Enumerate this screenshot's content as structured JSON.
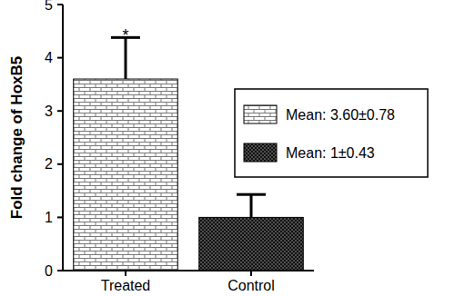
{
  "chart_data": {
    "type": "bar",
    "y_label": "Fold change of HoxB5",
    "categories": [
      "Treated",
      "Control"
    ],
    "series": [
      {
        "name": "Mean: 3.60±0.78",
        "color": "#ffffff",
        "values": [
          3.6,
          null
        ],
        "errors": [
          0.78,
          null
        ]
      },
      {
        "name": "Mean: 1±0.43",
        "color": "#111111",
        "values": [
          null,
          1
        ],
        "errors": [
          null,
          0.43
        ]
      }
    ],
    "annotations": [
      {
        "text": "*",
        "x": "Treated"
      }
    ],
    "ylim": [
      0,
      5
    ],
    "yticks": [
      0,
      1,
      2,
      3,
      4,
      5
    ],
    "legend": "upper right",
    "grid": false
  }
}
